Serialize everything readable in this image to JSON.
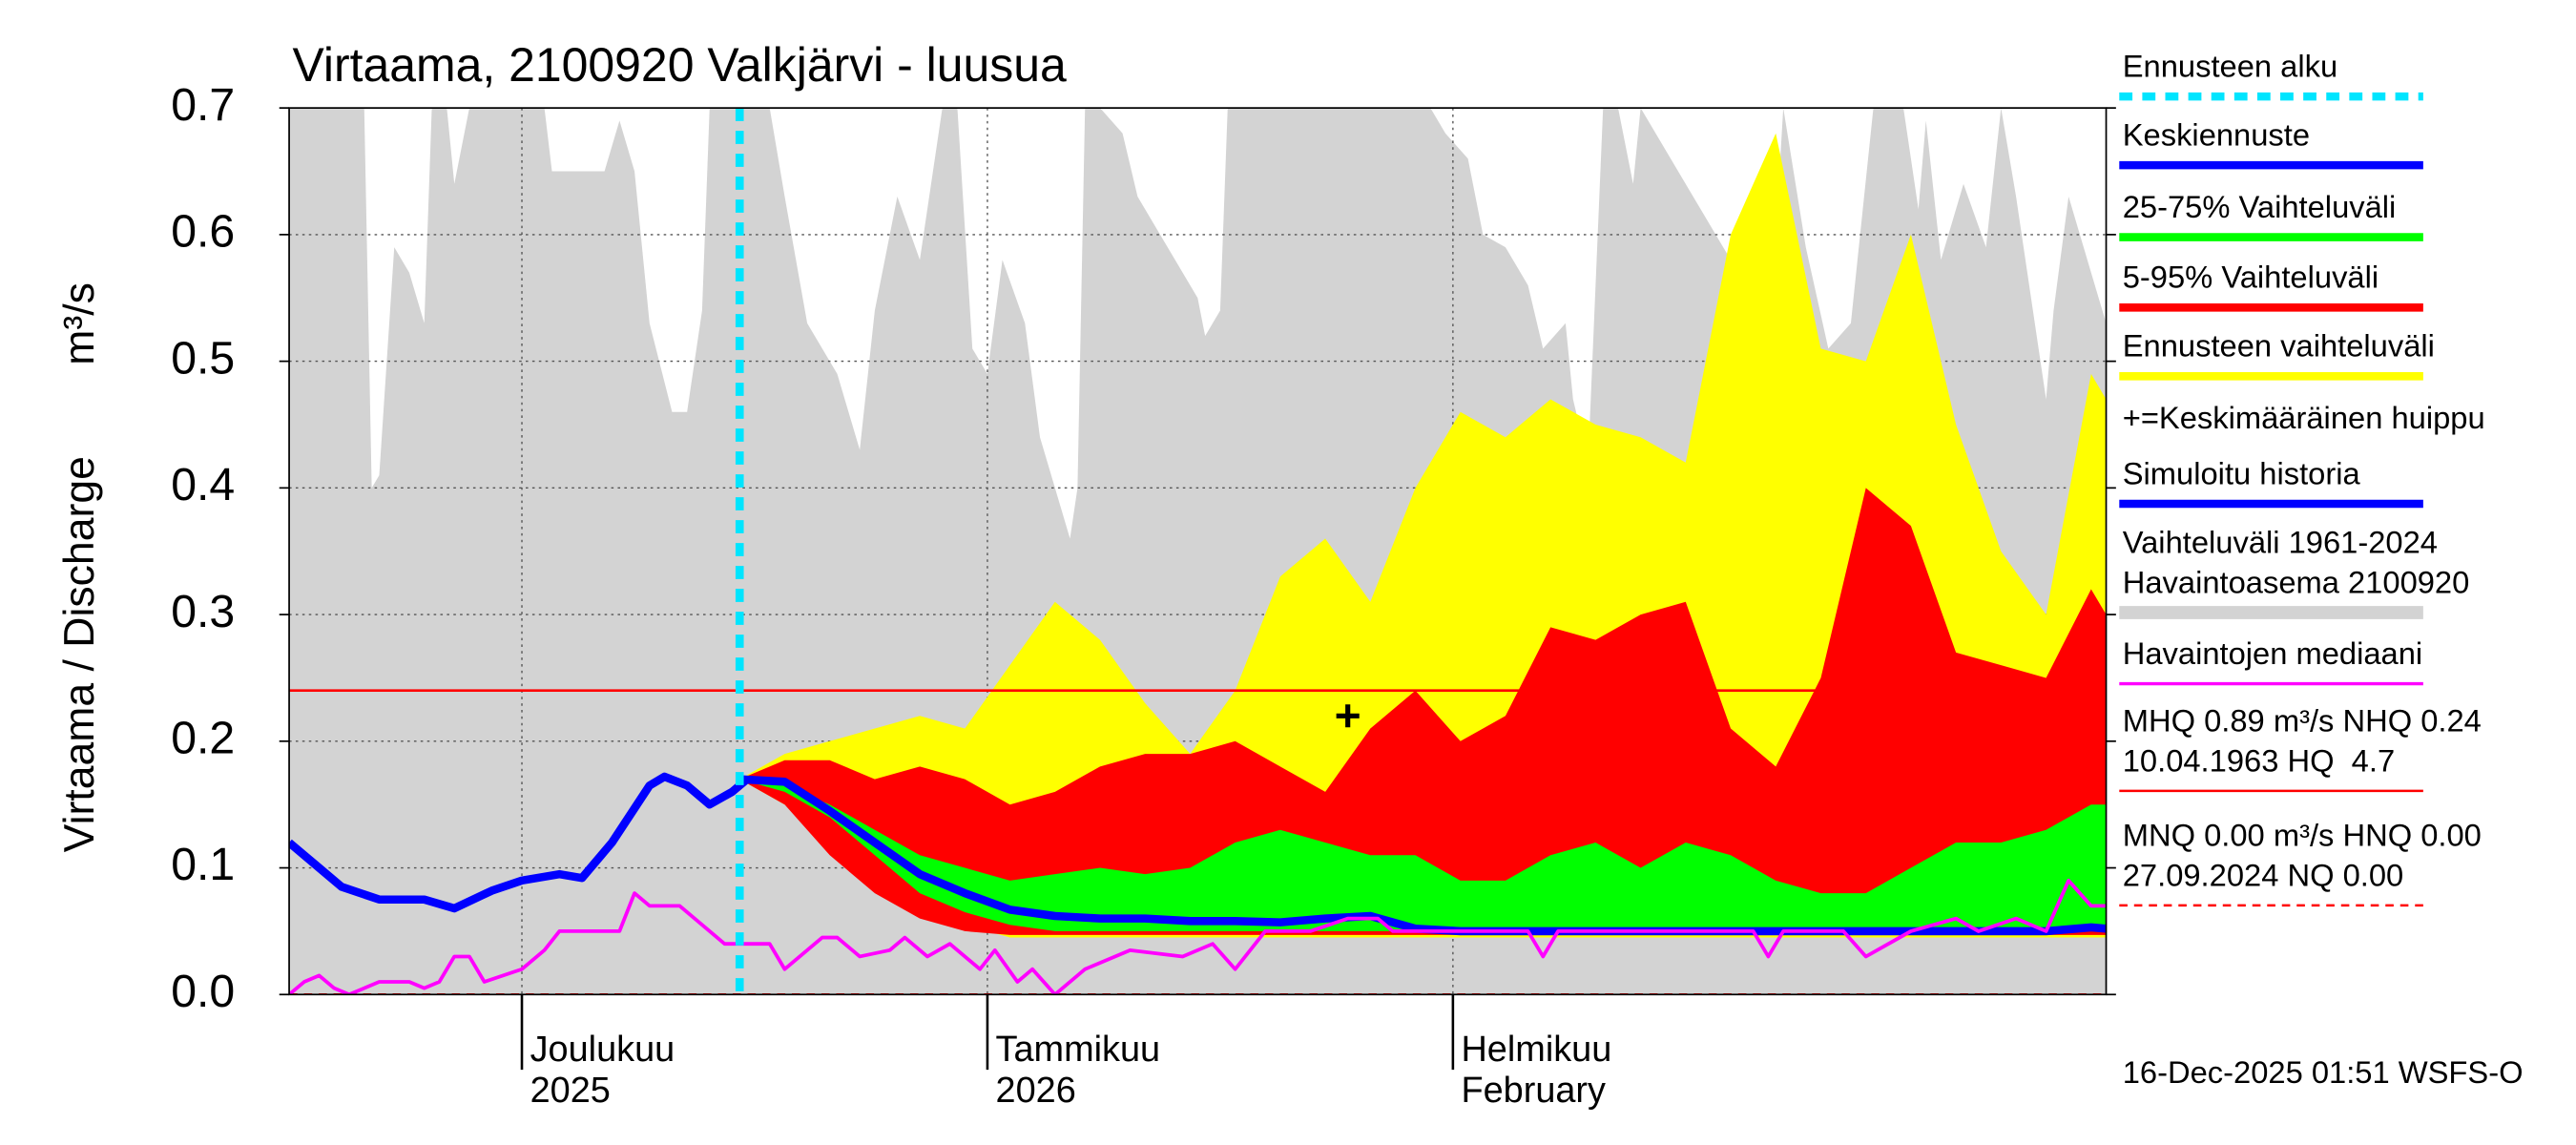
{
  "chart_data": {
    "type": "line",
    "title": "Virtaama, 2100920 Valkjärvi - luusua",
    "ylabel": "Virtaama / Discharge",
    "yunit": "m³/s",
    "footer": "16-Dec-2025 01:51 WSFS-O",
    "xlim": [
      0,
      121
    ],
    "xticks": [
      {
        "value": 15.5,
        "label": [
          "Joulukuu",
          "2025"
        ]
      },
      {
        "value": 46.5,
        "label": [
          "Tammikuu",
          "2026"
        ]
      },
      {
        "value": 77.5,
        "label": [
          "Helmikuu",
          "February"
        ]
      }
    ],
    "ylim": [
      0,
      0.7
    ],
    "yticks": [
      {
        "value": 0,
        "label": "0.0"
      },
      0.1,
      0.2,
      0.3,
      0.4,
      0.5,
      0.6,
      0.7
    ],
    "grid": true,
    "series": [
      {
        "name": "Ennusteen alku",
        "kind": "vline",
        "color": "#00e5ff",
        "x": 30
      },
      {
        "name": "Keskiennuste",
        "kind": "line",
        "color": "#0000ff",
        "x": [
          30,
          33,
          36,
          39,
          42,
          45,
          48,
          51,
          54,
          57,
          60,
          63,
          66,
          69,
          72,
          75,
          78,
          81,
          84,
          87,
          90,
          93,
          96,
          99,
          102,
          105,
          108,
          111,
          114,
          117,
          120,
          121
        ],
        "values": [
          0.17,
          0.168,
          0.145,
          0.12,
          0.095,
          0.08,
          0.067,
          0.062,
          0.06,
          0.06,
          0.058,
          0.058,
          0.057,
          0.06,
          0.062,
          0.052,
          0.05,
          0.05,
          0.05,
          0.05,
          0.05,
          0.05,
          0.05,
          0.05,
          0.05,
          0.05,
          0.05,
          0.05,
          0.05,
          0.05,
          0.053,
          0.052
        ]
      },
      {
        "name": "25-75% Vaihteluväli",
        "kind": "band",
        "color": "#00ff00",
        "x": [
          30,
          33,
          36,
          39,
          42,
          45,
          48,
          51,
          54,
          57,
          60,
          63,
          66,
          69,
          72,
          75,
          78,
          81,
          84,
          87,
          90,
          93,
          96,
          99,
          102,
          105,
          108,
          111,
          114,
          117,
          120,
          121
        ],
        "low": [
          0.17,
          0.16,
          0.14,
          0.11,
          0.08,
          0.065,
          0.055,
          0.05,
          0.05,
          0.05,
          0.05,
          0.05,
          0.05,
          0.05,
          0.05,
          0.05,
          0.05,
          0.05,
          0.05,
          0.05,
          0.05,
          0.05,
          0.05,
          0.05,
          0.05,
          0.05,
          0.05,
          0.05,
          0.05,
          0.05,
          0.05,
          0.05
        ],
        "high": [
          0.17,
          0.165,
          0.15,
          0.13,
          0.11,
          0.1,
          0.09,
          0.095,
          0.1,
          0.095,
          0.1,
          0.12,
          0.13,
          0.12,
          0.11,
          0.11,
          0.09,
          0.09,
          0.11,
          0.12,
          0.1,
          0.12,
          0.11,
          0.09,
          0.08,
          0.08,
          0.1,
          0.12,
          0.12,
          0.13,
          0.15,
          0.15
        ]
      },
      {
        "name": "5-95% Vaihteluväli",
        "kind": "band",
        "color": "#ff0000",
        "x": [
          30,
          33,
          36,
          39,
          42,
          45,
          48,
          51,
          54,
          57,
          60,
          63,
          66,
          69,
          72,
          75,
          78,
          81,
          84,
          87,
          90,
          93,
          96,
          99,
          102,
          105,
          108,
          111,
          114,
          117,
          120,
          121
        ],
        "low": [
          0.17,
          0.15,
          0.11,
          0.08,
          0.06,
          0.05,
          0.047,
          0.047,
          0.047,
          0.047,
          0.047,
          0.047,
          0.047,
          0.047,
          0.047,
          0.047,
          0.047,
          0.047,
          0.047,
          0.047,
          0.047,
          0.047,
          0.047,
          0.047,
          0.047,
          0.047,
          0.047,
          0.047,
          0.047,
          0.047,
          0.047,
          0.047
        ],
        "high": [
          0.17,
          0.185,
          0.185,
          0.17,
          0.18,
          0.17,
          0.15,
          0.16,
          0.18,
          0.19,
          0.19,
          0.2,
          0.18,
          0.16,
          0.21,
          0.24,
          0.2,
          0.22,
          0.29,
          0.28,
          0.3,
          0.31,
          0.21,
          0.18,
          0.25,
          0.4,
          0.37,
          0.27,
          0.26,
          0.25,
          0.32,
          0.3
        ]
      },
      {
        "name": "Ennusteen vaihteluväli",
        "kind": "band",
        "color": "#ffff00",
        "x": [
          30,
          33,
          36,
          39,
          42,
          45,
          48,
          51,
          54,
          57,
          60,
          63,
          66,
          69,
          72,
          75,
          78,
          81,
          84,
          87,
          90,
          93,
          96,
          99,
          102,
          105,
          108,
          111,
          114,
          117,
          120,
          121
        ],
        "low": [
          0.17,
          0.15,
          0.12,
          0.09,
          0.065,
          0.055,
          0.045,
          0.045,
          0.045,
          0.045,
          0.045,
          0.045,
          0.045,
          0.045,
          0.045,
          0.045,
          0.045,
          0.045,
          0.045,
          0.045,
          0.045,
          0.045,
          0.045,
          0.045,
          0.045,
          0.045,
          0.045,
          0.045,
          0.045,
          0.045,
          0.045,
          0.045
        ],
        "high": [
          0.17,
          0.19,
          0.2,
          0.21,
          0.22,
          0.21,
          0.26,
          0.31,
          0.28,
          0.23,
          0.19,
          0.24,
          0.33,
          0.36,
          0.31,
          0.4,
          0.46,
          0.44,
          0.47,
          0.45,
          0.44,
          0.42,
          0.6,
          0.68,
          0.51,
          0.5,
          0.6,
          0.45,
          0.35,
          0.3,
          0.49,
          0.47
        ]
      },
      {
        "name": "+=Keskimääräinen huippu",
        "kind": "marker",
        "color": "#000000",
        "x": 70.5,
        "y": 0.22
      },
      {
        "name": "Simuloitu historia",
        "kind": "line",
        "color": "#0000ff",
        "x": [
          0,
          2,
          3.5,
          6,
          9,
          11,
          13.5,
          15.5,
          18,
          19.5,
          21.5,
          24,
          25,
          26.5,
          28,
          29.5,
          30.5
        ],
        "values": [
          0.12,
          0.1,
          0.085,
          0.075,
          0.075,
          0.068,
          0.082,
          0.09,
          0.095,
          0.092,
          0.12,
          0.165,
          0.172,
          0.165,
          0.15,
          0.16,
          0.17
        ]
      },
      {
        "name": [
          "Vaihteluväli 1961-2024",
          "Havaintoasema 2100920"
        ],
        "kind": "area",
        "color": "#d3d3d3",
        "x": [
          0,
          4,
          5,
          5.5,
          6,
          7,
          8,
          9,
          9.5,
          10.5,
          11,
          12,
          17,
          17.5,
          21,
          22,
          23,
          24,
          25.5,
          26.5,
          27.5,
          28,
          32,
          33,
          34.5,
          36.5,
          38,
          39,
          40.5,
          42,
          43.5,
          44.5,
          45.5,
          46.5,
          47.5,
          49,
          50,
          51,
          52,
          52.5,
          53,
          54,
          55.5,
          56.5,
          58.5,
          60.5,
          61,
          62,
          62.5,
          76,
          77,
          78.5,
          79.5,
          81,
          82.5,
          83.5,
          85,
          85.5,
          86.5,
          87.5,
          88.5,
          89.5,
          90,
          96.5,
          98,
          99.5,
          101,
          102.5,
          104,
          105.5,
          107.5,
          108.5,
          109,
          110,
          111.5,
          113,
          114,
          115,
          117,
          117.5,
          118.5,
          120,
          121
        ],
        "values": [
          0.7,
          0.7,
          0.7,
          0.4,
          0.41,
          0.59,
          0.57,
          0.53,
          0.7,
          0.7,
          0.64,
          0.7,
          0.7,
          0.65,
          0.65,
          0.69,
          0.65,
          0.53,
          0.46,
          0.46,
          0.54,
          0.7,
          0.7,
          0.63,
          0.53,
          0.49,
          0.43,
          0.54,
          0.63,
          0.58,
          0.7,
          0.7,
          0.51,
          0.49,
          0.58,
          0.53,
          0.44,
          0.4,
          0.36,
          0.4,
          0.7,
          0.7,
          0.68,
          0.63,
          0.59,
          0.55,
          0.52,
          0.54,
          0.7,
          0.7,
          0.68,
          0.66,
          0.6,
          0.59,
          0.56,
          0.51,
          0.53,
          0.47,
          0.42,
          0.7,
          0.7,
          0.64,
          0.7,
          0.57,
          0.4,
          0.7,
          0.59,
          0.51,
          0.53,
          0.7,
          0.7,
          0.62,
          0.69,
          0.58,
          0.64,
          0.59,
          0.7,
          0.63,
          0.47,
          0.54,
          0.63,
          0.57,
          0.53
        ]
      },
      {
        "name": "Havaintojen mediaani",
        "kind": "line",
        "color": "#ff00ff",
        "x": [
          0,
          1,
          2,
          3,
          4,
          6,
          8,
          9,
          10,
          11,
          12,
          13,
          15.5,
          17,
          18,
          22,
          23,
          24,
          26,
          29,
          32,
          33,
          35.5,
          36.5,
          38,
          40,
          41,
          42.5,
          44,
          46,
          47,
          48.5,
          49.5,
          51,
          53,
          56,
          59.5,
          61.5,
          63,
          65,
          68,
          70.5,
          72.5,
          73.5,
          82.5,
          83.5,
          84.5,
          97.5,
          98.5,
          99.5,
          103.5,
          105,
          106.5,
          108,
          111,
          112.5,
          115,
          117,
          118.5,
          120,
          121
        ],
        "values": [
          0.0,
          0.01,
          0.015,
          0.005,
          0.0,
          0.01,
          0.01,
          0.005,
          0.01,
          0.03,
          0.03,
          0.01,
          0.02,
          0.035,
          0.05,
          0.05,
          0.08,
          0.07,
          0.07,
          0.04,
          0.04,
          0.02,
          0.045,
          0.045,
          0.03,
          0.035,
          0.045,
          0.03,
          0.04,
          0.02,
          0.035,
          0.01,
          0.02,
          0.0,
          0.02,
          0.035,
          0.03,
          0.04,
          0.02,
          0.05,
          0.05,
          0.06,
          0.06,
          0.05,
          0.05,
          0.03,
          0.05,
          0.05,
          0.03,
          0.05,
          0.05,
          0.03,
          0.04,
          0.05,
          0.06,
          0.05,
          0.06,
          0.05,
          0.09,
          0.07,
          0.07
        ]
      },
      {
        "name": [
          "MHQ 0.89 m³/s NHQ 0.24",
          "10.04.1963 HQ  4.7"
        ],
        "kind": "hline",
        "color": "#ff0000",
        "y": 0.24
      },
      {
        "name": [
          "MNQ 0.00 m³/s HNQ 0.00",
          "27.09.2024 NQ 0.00"
        ],
        "kind": "hline",
        "color": "#ff0000",
        "dash": true,
        "y": 0
      }
    ]
  }
}
